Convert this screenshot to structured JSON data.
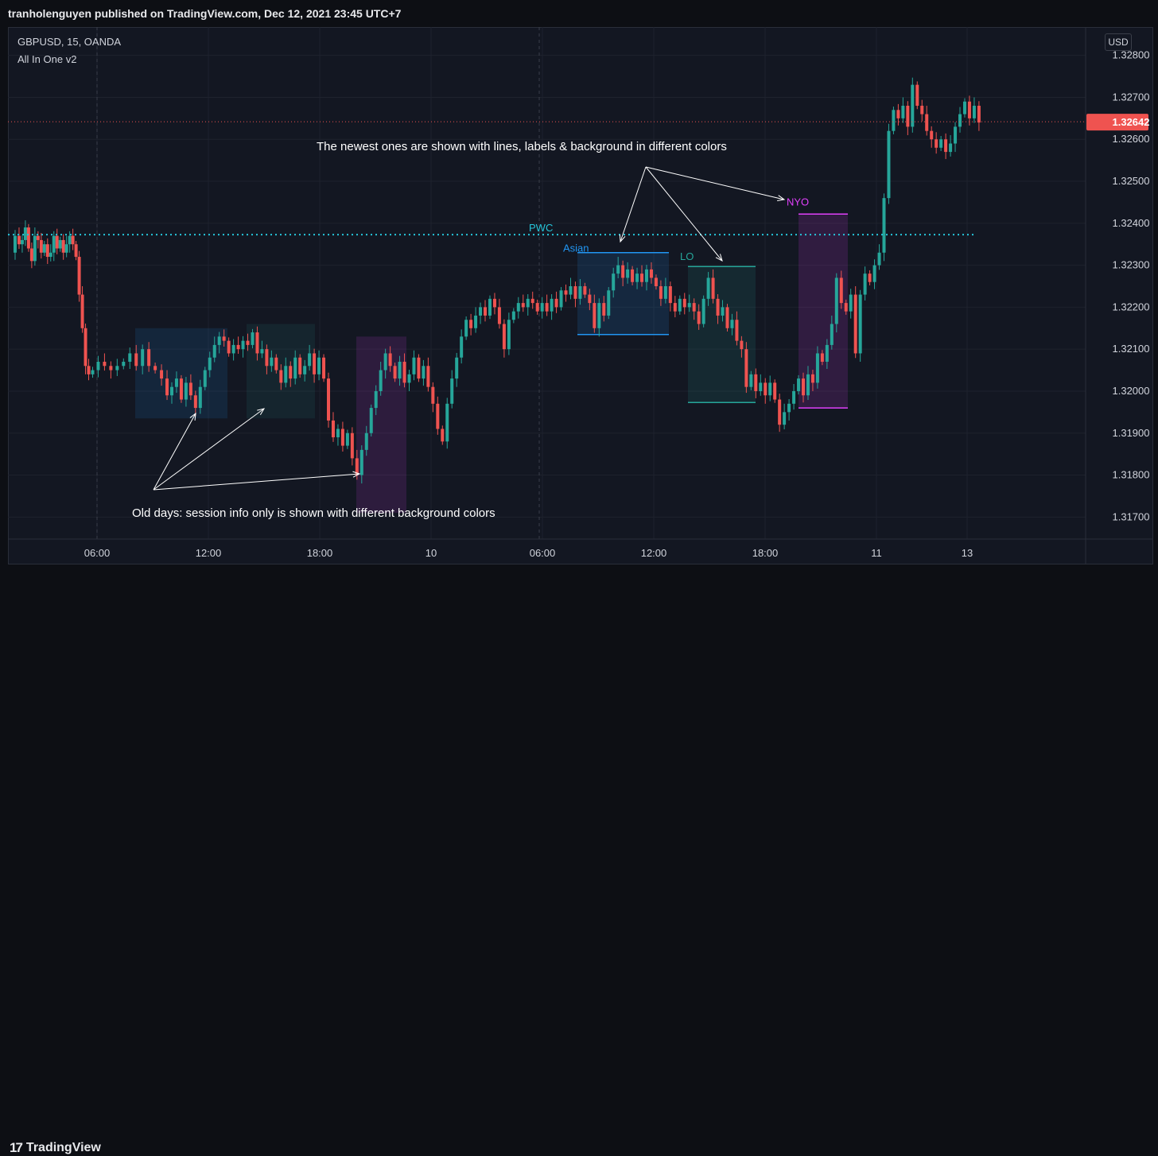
{
  "header": {
    "published_text": "tranholenguyen published on TradingView.com, Dec 12, 2021 23:45 UTC+7"
  },
  "legend": {
    "symbol": "GBPUSD, 15, OANDA",
    "indicator": "All In One v2"
  },
  "price_scale": {
    "currency": "USD",
    "current_price": "1.32642"
  },
  "footer": {
    "brand": "TradingView"
  },
  "colors": {
    "up": "#26a69a",
    "down": "#ef5350",
    "pwc_line": "#26c6da",
    "asian": "#2196f3",
    "lo": "#26a69a",
    "nyo": "#e040fb"
  },
  "chart_data": {
    "type": "candlestick",
    "symbol": "GBPUSD",
    "timeframe": "15",
    "y_ticks": [
      "1.32800",
      "1.32700",
      "1.32600",
      "1.32500",
      "1.32400",
      "1.32300",
      "1.32200",
      "1.32100",
      "1.32000",
      "1.31900",
      "1.31800",
      "1.31700"
    ],
    "ylim": [
      1.3164,
      1.3286
    ],
    "x_ticks": [
      "06:00",
      "12:00",
      "18:00",
      "10",
      "06:00",
      "12:00",
      "18:00",
      "11",
      "13"
    ],
    "last_price": 1.32642,
    "pwc_level": 1.32373,
    "sessions_today": {
      "asian": {
        "label": "Asian",
        "high": 1.3233,
        "low": 1.32135
      },
      "lo": {
        "label": "LO",
        "high": 1.32297,
        "low": 1.31973
      },
      "nyo": {
        "label": "NYO",
        "high": 1.32422,
        "low": 1.3196
      }
    },
    "labels": {
      "pwc": "PWC"
    },
    "annotations": [
      "The newest ones are shown with lines, labels & background in different colors",
      "Old days: session info only is shown with different background colors"
    ],
    "close_path": [
      [
        0,
        1.3233
      ],
      [
        6,
        1.3237
      ],
      [
        10,
        1.3235
      ],
      [
        14,
        1.3236
      ],
      [
        18,
        1.3239
      ],
      [
        22,
        1.3234
      ],
      [
        26,
        1.3231
      ],
      [
        30,
        1.3237
      ],
      [
        34,
        1.3236
      ],
      [
        38,
        1.3233
      ],
      [
        42,
        1.3235
      ],
      [
        46,
        1.3232
      ],
      [
        50,
        1.3233
      ],
      [
        54,
        1.3237
      ],
      [
        58,
        1.3234
      ],
      [
        62,
        1.3236
      ],
      [
        66,
        1.3233
      ],
      [
        70,
        1.3235
      ],
      [
        74,
        1.3237
      ],
      [
        78,
        1.3235
      ],
      [
        82,
        1.3232
      ],
      [
        86,
        1.3223
      ],
      [
        90,
        1.3215
      ],
      [
        94,
        1.3206
      ],
      [
        98,
        1.3204
      ],
      [
        104,
        1.3205
      ],
      [
        112,
        1.3207
      ],
      [
        120,
        1.3206
      ],
      [
        128,
        1.3205
      ],
      [
        136,
        1.3206
      ],
      [
        144,
        1.3207
      ],
      [
        152,
        1.3209
      ],
      [
        160,
        1.3206
      ],
      [
        168,
        1.321
      ],
      [
        176,
        1.3206
      ],
      [
        184,
        1.3205
      ],
      [
        192,
        1.3203
      ],
      [
        198,
        1.3199
      ],
      [
        204,
        1.3201
      ],
      [
        210,
        1.3203
      ],
      [
        216,
        1.3198
      ],
      [
        222,
        1.3202
      ],
      [
        228,
        1.3199
      ],
      [
        234,
        1.3196
      ],
      [
        240,
        1.3201
      ],
      [
        246,
        1.3205
      ],
      [
        252,
        1.3208
      ],
      [
        258,
        1.3211
      ],
      [
        264,
        1.3213
      ],
      [
        270,
        1.3212
      ],
      [
        276,
        1.3209
      ],
      [
        282,
        1.3211
      ],
      [
        288,
        1.321
      ],
      [
        294,
        1.3212
      ],
      [
        300,
        1.3211
      ],
      [
        306,
        1.3214
      ],
      [
        312,
        1.3209
      ],
      [
        318,
        1.321
      ],
      [
        324,
        1.3206
      ],
      [
        330,
        1.3208
      ],
      [
        336,
        1.3205
      ],
      [
        342,
        1.3202
      ],
      [
        348,
        1.3206
      ],
      [
        354,
        1.3203
      ],
      [
        360,
        1.3208
      ],
      [
        366,
        1.3204
      ],
      [
        372,
        1.3206
      ],
      [
        378,
        1.3209
      ],
      [
        384,
        1.3204
      ],
      [
        390,
        1.3208
      ],
      [
        396,
        1.3203
      ],
      [
        402,
        1.3193
      ],
      [
        408,
        1.3189
      ],
      [
        414,
        1.3191
      ],
      [
        420,
        1.3187
      ],
      [
        426,
        1.319
      ],
      [
        432,
        1.3184
      ],
      [
        438,
        1.318
      ],
      [
        444,
        1.3186
      ],
      [
        450,
        1.319
      ],
      [
        456,
        1.3196
      ],
      [
        462,
        1.32
      ],
      [
        468,
        1.3205
      ],
      [
        474,
        1.3209
      ],
      [
        480,
        1.3206
      ],
      [
        486,
        1.3203
      ],
      [
        492,
        1.3207
      ],
      [
        498,
        1.3202
      ],
      [
        504,
        1.3204
      ],
      [
        510,
        1.3208
      ],
      [
        516,
        1.3203
      ],
      [
        522,
        1.3206
      ],
      [
        528,
        1.3201
      ],
      [
        534,
        1.3197
      ],
      [
        540,
        1.3191
      ],
      [
        546,
        1.3188
      ],
      [
        552,
        1.3197
      ],
      [
        558,
        1.3203
      ],
      [
        564,
        1.3208
      ],
      [
        570,
        1.3213
      ],
      [
        576,
        1.3217
      ],
      [
        582,
        1.3215
      ],
      [
        588,
        1.3218
      ],
      [
        594,
        1.322
      ],
      [
        600,
        1.3218
      ],
      [
        606,
        1.3222
      ],
      [
        612,
        1.322
      ],
      [
        618,
        1.3216
      ],
      [
        624,
        1.321
      ],
      [
        630,
        1.3217
      ],
      [
        636,
        1.3219
      ],
      [
        642,
        1.3221
      ],
      [
        648,
        1.322
      ],
      [
        654,
        1.3222
      ],
      [
        660,
        1.3221
      ],
      [
        666,
        1.3219
      ],
      [
        672,
        1.3221
      ],
      [
        678,
        1.3219
      ],
      [
        684,
        1.3222
      ],
      [
        690,
        1.322
      ],
      [
        696,
        1.3224
      ],
      [
        702,
        1.3223
      ],
      [
        708,
        1.3225
      ],
      [
        714,
        1.3222
      ],
      [
        720,
        1.3225
      ],
      [
        726,
        1.3223
      ],
      [
        732,
        1.3221
      ],
      [
        738,
        1.3215
      ],
      [
        744,
        1.3221
      ],
      [
        750,
        1.3218
      ],
      [
        756,
        1.3224
      ],
      [
        762,
        1.3228
      ],
      [
        768,
        1.323
      ],
      [
        774,
        1.3227
      ],
      [
        780,
        1.3229
      ],
      [
        786,
        1.3226
      ],
      [
        792,
        1.3228
      ],
      [
        798,
        1.3226
      ],
      [
        804,
        1.3229
      ],
      [
        810,
        1.3227
      ],
      [
        816,
        1.3225
      ],
      [
        822,
        1.3222
      ],
      [
        828,
        1.3225
      ],
      [
        834,
        1.3221
      ],
      [
        840,
        1.3219
      ],
      [
        846,
        1.3222
      ],
      [
        852,
        1.322
      ],
      [
        858,
        1.3221
      ],
      [
        864,
        1.3219
      ],
      [
        870,
        1.3216
      ],
      [
        876,
        1.3222
      ],
      [
        882,
        1.3227
      ],
      [
        888,
        1.3222
      ],
      [
        894,
        1.3218
      ],
      [
        900,
        1.322
      ],
      [
        906,
        1.3215
      ],
      [
        912,
        1.3217
      ],
      [
        918,
        1.3212
      ],
      [
        924,
        1.321
      ],
      [
        930,
        1.3201
      ],
      [
        936,
        1.3204
      ],
      [
        942,
        1.32
      ],
      [
        948,
        1.3202
      ],
      [
        954,
        1.3199
      ],
      [
        960,
        1.3202
      ],
      [
        966,
        1.3198
      ],
      [
        972,
        1.3192
      ],
      [
        978,
        1.3195
      ],
      [
        984,
        1.3197
      ],
      [
        990,
        1.32
      ],
      [
        996,
        1.3203
      ],
      [
        1002,
        1.3199
      ],
      [
        1008,
        1.3204
      ],
      [
        1014,
        1.3202
      ],
      [
        1020,
        1.3209
      ],
      [
        1026,
        1.3207
      ],
      [
        1032,
        1.3211
      ],
      [
        1038,
        1.3216
      ],
      [
        1044,
        1.3227
      ],
      [
        1050,
        1.3221
      ],
      [
        1056,
        1.3219
      ],
      [
        1062,
        1.3223
      ],
      [
        1068,
        1.3209
      ],
      [
        1074,
        1.3223
      ],
      [
        1080,
        1.3228
      ],
      [
        1086,
        1.3226
      ],
      [
        1092,
        1.323
      ],
      [
        1098,
        1.3233
      ],
      [
        1104,
        1.3246
      ],
      [
        1110,
        1.3262
      ],
      [
        1116,
        1.3267
      ],
      [
        1122,
        1.3265
      ],
      [
        1128,
        1.3268
      ],
      [
        1134,
        1.3263
      ],
      [
        1140,
        1.3273
      ],
      [
        1146,
        1.3268
      ],
      [
        1152,
        1.3266
      ],
      [
        1158,
        1.3262
      ],
      [
        1164,
        1.326
      ],
      [
        1170,
        1.3258
      ],
      [
        1176,
        1.326
      ],
      [
        1182,
        1.3257
      ],
      [
        1188,
        1.3259
      ],
      [
        1194,
        1.3263
      ],
      [
        1200,
        1.3266
      ],
      [
        1206,
        1.3269
      ],
      [
        1212,
        1.3265
      ],
      [
        1218,
        1.3268
      ],
      [
        1224,
        1.3264
      ]
    ]
  }
}
